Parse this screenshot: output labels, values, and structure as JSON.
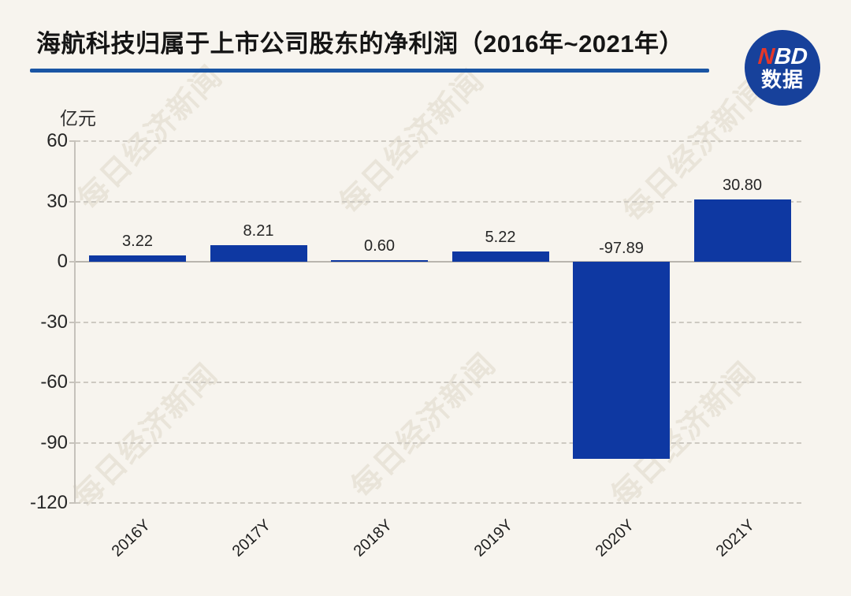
{
  "page": {
    "background": "#f7f4ee"
  },
  "header": {
    "title": "海航科技归属于上市公司股东的净利润（2016年~2021年）",
    "underline_color": "#1a55a4",
    "logo": {
      "line1_accent": "N",
      "line1_rest": "BD",
      "line2": "数据",
      "circle_color": "#17419b",
      "accent_color": "#e5372a"
    }
  },
  "watermark": {
    "text": "每日经济新闻"
  },
  "chart_data": {
    "type": "bar",
    "title": "海航科技归属于上市公司股东的净利润（2016年~2021年）",
    "unit_label": "亿元",
    "categories": [
      "2016Y",
      "2017Y",
      "2018Y",
      "2019Y",
      "2020Y",
      "2021Y"
    ],
    "values": [
      3.22,
      8.21,
      0.6,
      5.22,
      -97.89,
      30.8
    ],
    "value_labels": [
      "3.22",
      "8.21",
      "0.60",
      "5.22",
      "-97.89",
      "30.80"
    ],
    "y_ticks": [
      60,
      30,
      0,
      -30,
      -60,
      -90,
      -120
    ],
    "ylim": [
      -120,
      60
    ],
    "bar_color": "#0e38a2",
    "grid": "dashed horizontal gridlines, solid zero line",
    "legend": "none"
  }
}
